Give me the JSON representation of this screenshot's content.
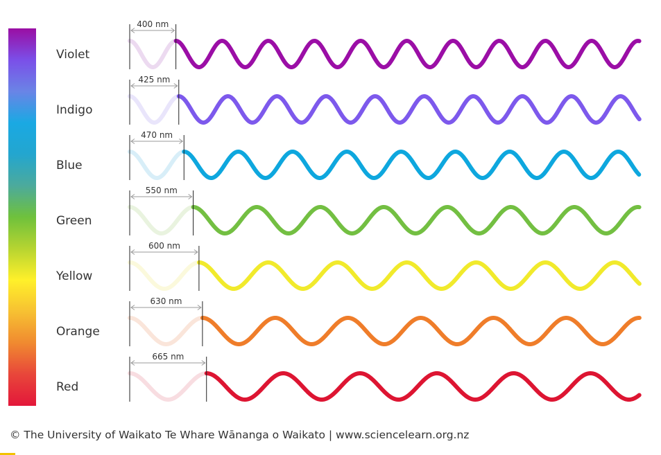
{
  "spectrum": {
    "gradient_stops": [
      "#9a0ea3",
      "#7b4fe8",
      "#6a84e6",
      "#1aa9e3",
      "#23a6cf",
      "#4caa9c",
      "#6fc13c",
      "#b6d431",
      "#fff02a",
      "#f7c132",
      "#f08a30",
      "#e8463a",
      "#e3173a"
    ]
  },
  "waves": [
    {
      "label": "Violet",
      "wavelength": 400,
      "wavelength_label": "400 nm",
      "color": "#9b0ea6",
      "ghost_color": "#ecdaf0"
    },
    {
      "label": "Indigo",
      "wavelength": 425,
      "wavelength_label": "425 nm",
      "color": "#7d59ec",
      "ghost_color": "#e9e5fb"
    },
    {
      "label": "Blue",
      "wavelength": 470,
      "wavelength_label": "470 nm",
      "color": "#0ea7de",
      "ghost_color": "#d8eef8"
    },
    {
      "label": "Green",
      "wavelength": 550,
      "wavelength_label": "550 nm",
      "color": "#73bf42",
      "ghost_color": "#e9f3df"
    },
    {
      "label": "Yellow",
      "wavelength": 600,
      "wavelength_label": "600 nm",
      "color": "#f1ea2c",
      "ghost_color": "#fbf9dc"
    },
    {
      "label": "Orange",
      "wavelength": 630,
      "wavelength_label": "630 nm",
      "color": "#ef7d2a",
      "ghost_color": "#fae5da"
    },
    {
      "label": "Red",
      "wavelength": 665,
      "wavelength_label": "665 nm",
      "color": "#dd1532",
      "ghost_color": "#f8dde1"
    }
  ],
  "footer": {
    "credit": "© The University of Waikato Te Whare Wānanga o Waikato | www.sciencelearn.org.nz"
  },
  "colors": {
    "arrow": "#9a9a9a",
    "tick": "#222222",
    "text": "#333333"
  }
}
